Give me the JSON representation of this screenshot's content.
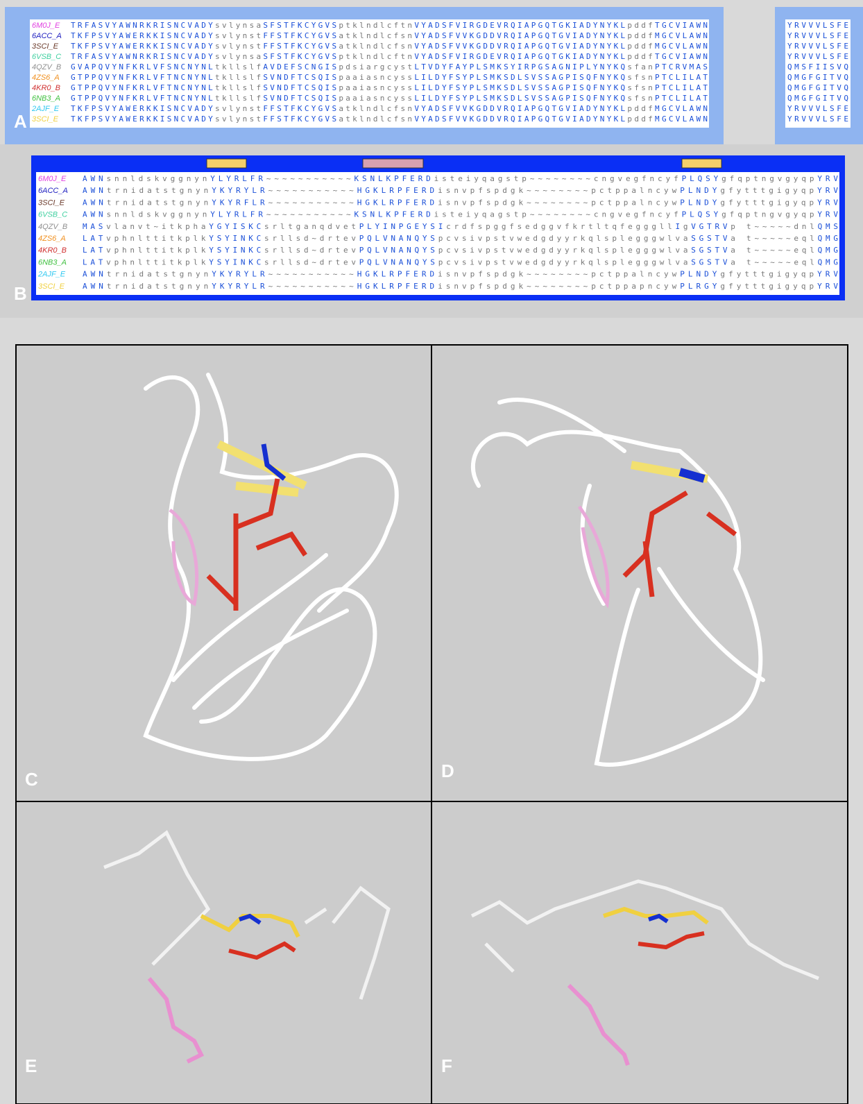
{
  "panel_a": {
    "label": "A",
    "rows": [
      {
        "name": "6M0J_E",
        "color": "#e040e0",
        "sequence": "TRFASVYAWNRKRISNCVADYsvlynsaSFSTFKCYGVSptklndlcftnVYADSFVIRGDEVRQIAPGQTGKIADYNYKLpddfTGCVIAWN"
      },
      {
        "name": "6ACC_A",
        "color": "#2020c0",
        "sequence": "TKFPSVYAWERKKISNCVADYsvlynstFFSTFKCYGVSatklndlcfsnVYADSFVVKGDDVRQIAPGQTGVIADYNYKLpddfMGCVLAWN"
      },
      {
        "name": "3SCI_E",
        "color": "#6b3a2a",
        "sequence": "TKFPSVYAWERKKISNCVADYsvlynstFFSTFKCYGVSatklndlcfsnVYADSFVVKGDDVRQIAPGQTGVIADYNYKLpddfMGCVLAWN"
      },
      {
        "name": "6VSB_C",
        "color": "#40d0a0",
        "sequence": "TRFASVYAWNRKRISNCVADYsvlynsaSFSTFKCYGVSptklndlcftnVYADSFVIRGDEVRQIAPGQTGKIADYNYKLpddfTGCVIAWN"
      },
      {
        "name": "4QZV_B",
        "color": "#909090",
        "sequence": "GVAPQVYNFKRLVFSNCNYNLtkllslfAVDEFSCNGISpdsiargcystLTVDYFAYPLSMKSYIRPGSAGNIPLYNYKQsfanPTCRVMAS"
      },
      {
        "name": "4ZS6_A",
        "color": "#f09020",
        "sequence": "GTPPQVYNFKRLVFTNCNYNLtkllslfSVNDFTCSQISpaaiasncyssLILDYFSYPLSMKSDLSVSSAGPISQFNYKQsfsnPTCLILAT"
      },
      {
        "name": "4KR0_B",
        "color": "#d03030",
        "sequence": "GTPPQVYNFKRLVFTNCNYNLtkllslfSVNDFTCSQISpaaiasncyssLILDYFSYPLSMKSDLSVSSAGPISQFNYKQsfsnPTCLILAT"
      },
      {
        "name": "6NB3_A",
        "color": "#40c040",
        "sequence": "GTPPQVYNFKRLVFTNCNYNLtkllslfSVNDFTCSQISpaaiasncyssLILDYFSYPLSMKSDLSVSSAGPISQFNYKQsfsnPTCLILAT"
      },
      {
        "name": "2AJF_E",
        "color": "#30c8f0",
        "sequence": "TKFPSVYAWERKKISNCVADYsvlynstFFSTFKCYGVSatklndlcfsnVYADSFVVKGDDVRQIAPGQTGVIADYNYKLpddfMGCVLAWN"
      },
      {
        "name": "3SCI_E",
        "color": "#f0d040",
        "sequence": "TKFPSVYAWERKKISNCVADYsvlynstFFSTFKCYGVSatklndlcfsnVYADSFVVKGDDVRQIAPGQTGVIADYNYKLpddfMGCVLAWN"
      }
    ],
    "right_rows": [
      "YRVVVLSFE",
      "YRVVVLSFE",
      "YRVVVLSFE",
      "YRVVVLSFE",
      "QMSFIISVQ",
      "QMGFGITVQ",
      "QMGFGITVQ",
      "QMGFGITVQ",
      "YRVVVLSFE",
      "YRVVVLSFE"
    ]
  },
  "panel_b": {
    "label": "B",
    "rows": [
      {
        "name": "6M0J_E",
        "color": "#e040e0",
        "sequence": "AWNsnnldskvggnynYLYRLFR~~~~~~~~~~~KSNLKPFERDisteiyqagstp~~~~~~~~cngvegfncyfPLQSYgfqptngvgyqpYRV"
      },
      {
        "name": "6ACC_A",
        "color": "#2020c0",
        "sequence": "AWNtrnidatstgnynYKYRYLR~~~~~~~~~~~HGKLRPFERDisnvpfspdgk~~~~~~~~pctppalncywPLNDYgfytttgigyqpYRV"
      },
      {
        "name": "3SCI_E",
        "color": "#6b3a2a",
        "sequence": "AWNtrnidatstgnynYKYRFLR~~~~~~~~~~~HGKLRPFERDisnvpfspdgk~~~~~~~~pctppalncywPLNDYgfytttgigyqpYRV"
      },
      {
        "name": "6VSB_C",
        "color": "#40d0a0",
        "sequence": "AWNsnnldskvggnynYLYRLFR~~~~~~~~~~~KSNLKPFERDisteiyqagstp~~~~~~~~cngvegfncyfPLQSYgfqptngvgyqpYRV"
      },
      {
        "name": "4QZV_B",
        "color": "#909090",
        "sequence": "MASvlanvt~itkphaYGYISKCsrltganqdvetPLYINPGEYSIcrdfspggfsedggvfkrtltqfegggllIgVGTRVp t~~~~~dnlQMS"
      },
      {
        "name": "4ZS6_A",
        "color": "#f09020",
        "sequence": "LATvphnlttitkplkYSYINKCsrllsd~drtevPQLVNANQYSpcvsivpstvwedgdyyrkqlsplegggwlvaSGSTVa t~~~~~eqlQMG"
      },
      {
        "name": "4KR0_B",
        "color": "#d03030",
        "sequence": "LATvphnlttitkplkYSYINKCsrllsd~drtevPQLVNANQYSpcvsivpstvwedgdyyrkqlsplegggwlvaSGSTVa t~~~~~eqlQMG"
      },
      {
        "name": "6NB3_A",
        "color": "#40c040",
        "sequence": "LATvphnlttitkplkYSYINKCsrllsd~drtevPQLVNANQYSpcvsivpstvwedgdyyrkqlsplegggwlvaSGSTVa t~~~~~eqlQMG"
      },
      {
        "name": "2AJF_E",
        "color": "#30c8f0",
        "sequence": "AWNtrnidatstgnynYKYRYLR~~~~~~~~~~~HGKLRPFERDisnvpfspdgk~~~~~~~~pctppalncywPLNDYgfytttgigyqpYRV"
      },
      {
        "name": "3SCI_E",
        "color": "#f0d040",
        "sequence": "AWNtrnidatstgnynYKYRYLR~~~~~~~~~~~HGKLRPFERDisnvpfspdgk~~~~~~~~pctppapncywPLRGYgfytttgigyqpYRV"
      }
    ]
  },
  "panels": [
    {
      "label": "C"
    },
    {
      "label": "D"
    },
    {
      "label": "E"
    },
    {
      "label": "F"
    }
  ]
}
